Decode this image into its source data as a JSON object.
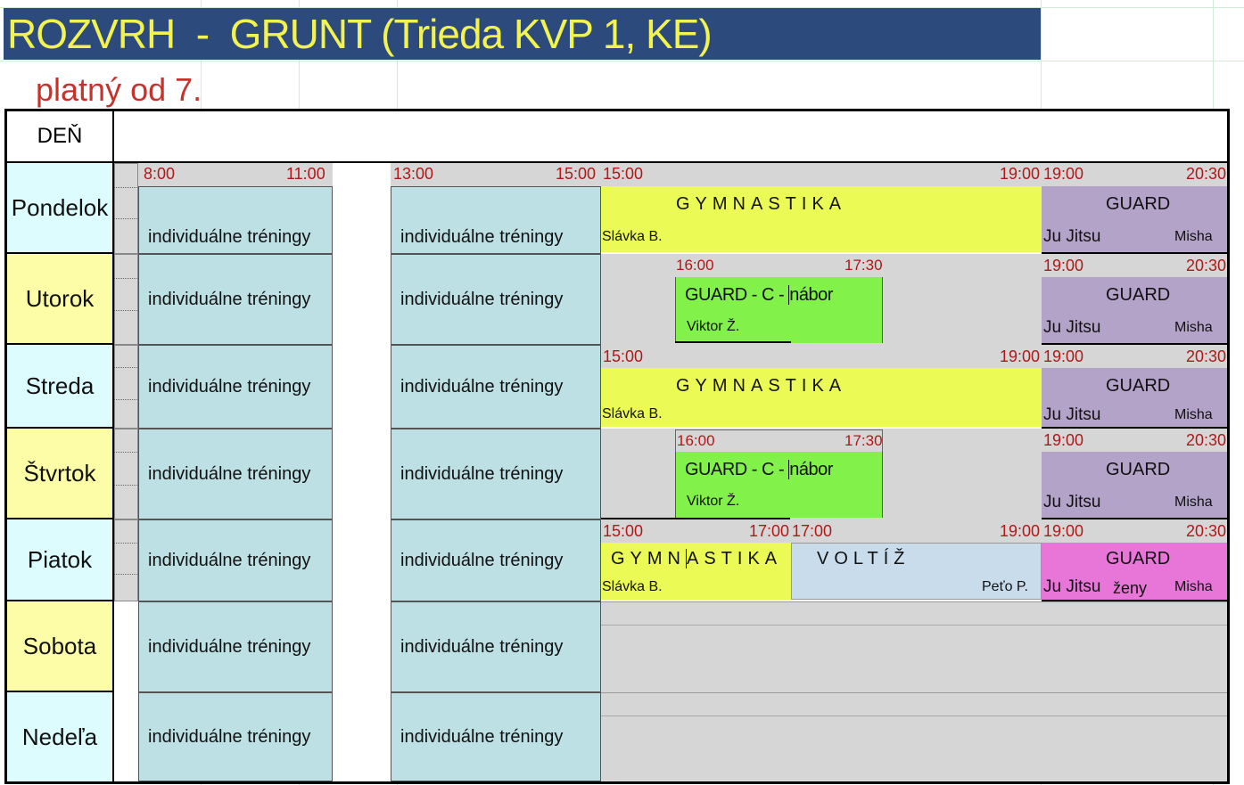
{
  "header": {
    "title": "ROZVRH  -  GRUNT (Trieda KVP 1, KE)",
    "subtitle": "platný od 7."
  },
  "grid": {
    "day_header": "DEŇ",
    "individual_label": "individuálne tréningy"
  },
  "times": {
    "t0800": "8:00",
    "t1100": "11:00",
    "t1300": "13:00",
    "t1500": "15:00",
    "t1600": "16:00",
    "t1700": "17:00",
    "t1730": "17:30",
    "t1900": "19:00",
    "t2030": "20:30"
  },
  "activities": {
    "gymnastika": "GYMNASTIKA",
    "gymn_part1": "GYMN",
    "gymn_part2": "ASTIKA",
    "guard": "GUARD",
    "guard_c": "GUARD - C - ",
    "nabor": "nábor",
    "jujitsu": "Ju Jitsu",
    "zeny": "ženy",
    "voltiz": "VOLTÍŽ"
  },
  "coaches": {
    "slavka": "Slávka B.",
    "misha": "Misha",
    "viktor": "Viktor Ž.",
    "peto": "Peťo P."
  },
  "days": [
    "Pondelok",
    "Utorok",
    "Streda",
    "Štvrtok",
    "Piatok",
    "Sobota",
    "Nedeľa"
  ],
  "colors": {
    "title_bg": "#2c4a7c",
    "title_text": "#f2f250",
    "subtitle": "#c8322c",
    "time_text": "#b01818",
    "individual": "#bde0e4",
    "gymnastika": "#ecfa55",
    "guard": "#b3a3c8",
    "guard_c": "#82f14a",
    "guard_women": "#e876d8",
    "voltiz": "#c8dcec"
  }
}
